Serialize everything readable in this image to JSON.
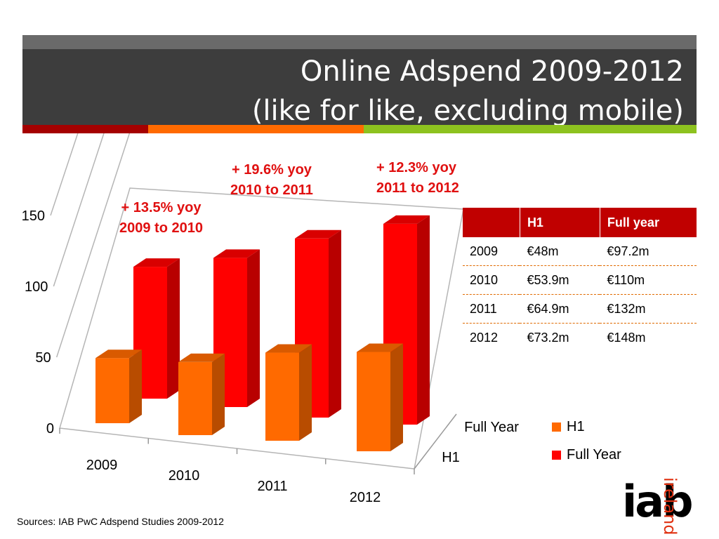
{
  "header": {
    "title_line1": "Online Adspend 2009-2012",
    "title_line2": "(like for like, excluding mobile)",
    "stripe_colors": [
      "#a50000",
      "#ff6a00",
      "#8dc21f"
    ]
  },
  "annotations": [
    {
      "line1": "+ 13.5% yoy",
      "line2": "2009 to 2010"
    },
    {
      "line1": "+ 19.6% yoy",
      "line2": "2010 to 2011"
    },
    {
      "line1": "+ 12.3% yoy",
      "line2": "2011 to 2012"
    }
  ],
  "chart_data": {
    "type": "bar",
    "style": "3d-clustered-depth",
    "categories": [
      "2009",
      "2010",
      "2011",
      "2012"
    ],
    "series": [
      {
        "name": "H1",
        "values": [
          48,
          53.9,
          64.9,
          73.2
        ],
        "color": "#ff6a00"
      },
      {
        "name": "Full Year",
        "values": [
          97.2,
          110,
          132,
          148
        ],
        "color": "#ff0000"
      }
    ],
    "ylim": [
      0,
      150
    ],
    "yticks": [
      "0",
      "50",
      "100",
      "150"
    ],
    "depth_labels": [
      "Full Year",
      "H1"
    ],
    "grid": true,
    "legend_position": "right"
  },
  "table": {
    "headers": [
      "",
      "H1",
      "Full year"
    ],
    "rows": [
      [
        "2009",
        "€48m",
        "€97.2m"
      ],
      [
        "2010",
        "€53.9m",
        "€110m"
      ],
      [
        "2011",
        "€64.9m",
        "€132m"
      ],
      [
        "2012",
        "€73.2m",
        "€148m"
      ]
    ]
  },
  "legend": [
    {
      "label": "H1",
      "color": "#ff6a00"
    },
    {
      "label": "Full Year",
      "color": "#ff0000"
    }
  ],
  "sources": "Sources: IAB PwC Adspend Studies 2009-2012",
  "logo": {
    "main": "iab",
    "vertical": "ireland"
  }
}
